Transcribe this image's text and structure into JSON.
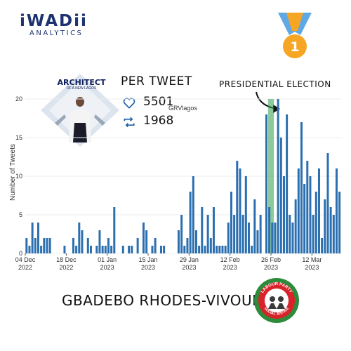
{
  "brand": {
    "name": "iWADii",
    "sub": "ANALYTICS"
  },
  "badge": {
    "number": "1"
  },
  "poster": {
    "title": "ARCHITECT",
    "subtitle": "OF A NEW LAGOS"
  },
  "per_tweet": {
    "heading": "PER TWEET",
    "likes": "5501",
    "retweets": "1968",
    "handle": "GRVlagos"
  },
  "annotation": "PRESIDENTIAL ELECTION",
  "candidate": "GBADEBO RHODES-VIVOUR",
  "party_badge": {
    "top_text": "LABOUR PARTY",
    "bottom_text": "SOCIAL JUSTICE"
  },
  "colors": {
    "bar": "#2b6fb0",
    "highlight": "#2e9c4a",
    "brand": "#1d3370",
    "medal": "#f6a623",
    "ribbon": "#5fa8e6",
    "party_green": "#2e8b3b",
    "party_red": "#d8232a"
  },
  "chart_data": {
    "type": "bar",
    "ylabel": "Number of Tweets",
    "xlabel": "",
    "ylim": [
      0,
      21
    ],
    "yticks": [
      "0",
      "5",
      "10",
      "15",
      "20"
    ],
    "xticks": [
      {
        "day": 0,
        "line1": "04 Dec",
        "line2": "2022"
      },
      {
        "day": 14,
        "line1": "18 Dec",
        "line2": "2022"
      },
      {
        "day": 28,
        "line1": "01 Jan",
        "line2": "2023"
      },
      {
        "day": 42,
        "line1": "15 Jan",
        "line2": "2023"
      },
      {
        "day": 56,
        "line1": "29 Jan",
        "line2": "2023"
      },
      {
        "day": 70,
        "line1": "12 Feb",
        "line2": "2023"
      },
      {
        "day": 84,
        "line1": "26 Feb",
        "line2": "2023"
      },
      {
        "day": 98,
        "line1": "12 Mar",
        "line2": "2023"
      }
    ],
    "highlight": {
      "start": 83,
      "end": 85,
      "label": "PRESIDENTIAL ELECTION"
    },
    "values": [
      2,
      1,
      4,
      2,
      4,
      1,
      2,
      2,
      2,
      0,
      0,
      0,
      0,
      1,
      0,
      0,
      2,
      1,
      4,
      3,
      0,
      2,
      1,
      0,
      1,
      3,
      1,
      1,
      2,
      1,
      6,
      0,
      0,
      1,
      0,
      1,
      1,
      0,
      2,
      0,
      4,
      3,
      0,
      1,
      2,
      0,
      1,
      1,
      0,
      0,
      0,
      0,
      3,
      5,
      1,
      2,
      8,
      10,
      3,
      1,
      6,
      1,
      5,
      2,
      6,
      1,
      1,
      1,
      1,
      4,
      8,
      5,
      12,
      11,
      5,
      10,
      4,
      1,
      7,
      3,
      5,
      0,
      18,
      6,
      4,
      4,
      20,
      15,
      10,
      18,
      5,
      4,
      7,
      11,
      17,
      9,
      12,
      10,
      5,
      8,
      11,
      2,
      7,
      13,
      6,
      5,
      11,
      8
    ]
  }
}
